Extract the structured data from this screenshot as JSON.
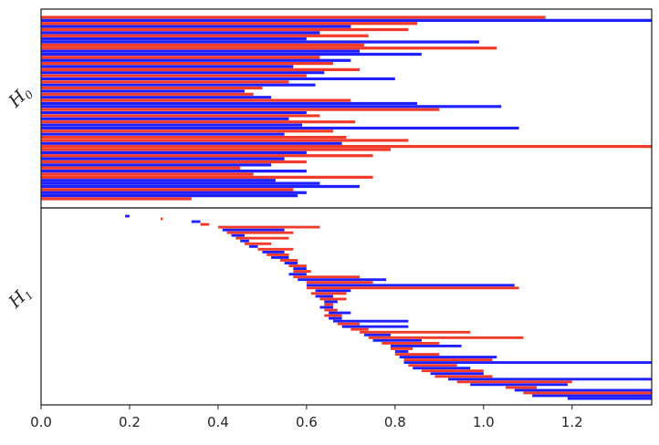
{
  "chart_data": {
    "type": "barcode",
    "xlim": [
      0.0,
      1.38
    ],
    "x_ticks": [
      0.0,
      0.2,
      0.4,
      0.6,
      0.8,
      1.0,
      1.2
    ],
    "x_tick_labels": [
      "0.0",
      "0.2",
      "0.4",
      "0.6",
      "0.8",
      "1.0",
      "1.2"
    ],
    "grid": false,
    "legend": "none",
    "colors": {
      "series_a": "#1f1fff",
      "series_b": "#f03a2a"
    },
    "panels": [
      {
        "label": "H",
        "label_sub": "0",
        "bars": [
          {
            "start": 0.0,
            "end": 1.14,
            "series": "series_b"
          },
          {
            "start": 0.0,
            "end": 1.38,
            "series": "series_a"
          },
          {
            "start": 0.0,
            "end": 0.85,
            "series": "series_b"
          },
          {
            "start": 0.0,
            "end": 0.7,
            "series": "series_a"
          },
          {
            "start": 0.0,
            "end": 0.83,
            "series": "series_b"
          },
          {
            "start": 0.0,
            "end": 0.63,
            "series": "series_a"
          },
          {
            "start": 0.0,
            "end": 0.74,
            "series": "series_b"
          },
          {
            "start": 0.0,
            "end": 0.6,
            "series": "series_a"
          },
          {
            "start": 0.0,
            "end": 0.99,
            "series": "series_a"
          },
          {
            "start": 0.0,
            "end": 0.73,
            "series": "series_b"
          },
          {
            "start": 0.0,
            "end": 1.03,
            "series": "series_b"
          },
          {
            "start": 0.0,
            "end": 0.72,
            "series": "series_a"
          },
          {
            "start": 0.0,
            "end": 0.86,
            "series": "series_a"
          },
          {
            "start": 0.0,
            "end": 0.63,
            "series": "series_b"
          },
          {
            "start": 0.0,
            "end": 0.7,
            "series": "series_a"
          },
          {
            "start": 0.0,
            "end": 0.66,
            "series": "series_b"
          },
          {
            "start": 0.0,
            "end": 0.57,
            "series": "series_a"
          },
          {
            "start": 0.0,
            "end": 0.72,
            "series": "series_b"
          },
          {
            "start": 0.0,
            "end": 0.64,
            "series": "series_a"
          },
          {
            "start": 0.0,
            "end": 0.6,
            "series": "series_b"
          },
          {
            "start": 0.0,
            "end": 0.8,
            "series": "series_a"
          },
          {
            "start": 0.0,
            "end": 0.56,
            "series": "series_b"
          },
          {
            "start": 0.0,
            "end": 0.62,
            "series": "series_a"
          },
          {
            "start": 0.0,
            "end": 0.5,
            "series": "series_b"
          },
          {
            "start": 0.0,
            "end": 0.46,
            "series": "series_a"
          },
          {
            "start": 0.0,
            "end": 0.48,
            "series": "series_b"
          },
          {
            "start": 0.0,
            "end": 0.52,
            "series": "series_a"
          },
          {
            "start": 0.0,
            "end": 0.7,
            "series": "series_b"
          },
          {
            "start": 0.0,
            "end": 0.85,
            "series": "series_a"
          },
          {
            "start": 0.0,
            "end": 1.04,
            "series": "series_a"
          },
          {
            "start": 0.0,
            "end": 0.9,
            "series": "series_b"
          },
          {
            "start": 0.0,
            "end": 0.6,
            "series": "series_a"
          },
          {
            "start": 0.0,
            "end": 0.63,
            "series": "series_b"
          },
          {
            "start": 0.0,
            "end": 0.56,
            "series": "series_a"
          },
          {
            "start": 0.0,
            "end": 0.71,
            "series": "series_b"
          },
          {
            "start": 0.0,
            "end": 0.59,
            "series": "series_a"
          },
          {
            "start": 0.0,
            "end": 1.08,
            "series": "series_a"
          },
          {
            "start": 0.0,
            "end": 0.66,
            "series": "series_b"
          },
          {
            "start": 0.0,
            "end": 0.55,
            "series": "series_a"
          },
          {
            "start": 0.0,
            "end": 0.69,
            "series": "series_b"
          },
          {
            "start": 0.0,
            "end": 0.83,
            "series": "series_b"
          },
          {
            "start": 0.0,
            "end": 0.68,
            "series": "series_a"
          },
          {
            "start": 0.0,
            "end": 1.38,
            "series": "series_b"
          },
          {
            "start": 0.0,
            "end": 0.79,
            "series": "series_b"
          },
          {
            "start": 0.0,
            "end": 0.6,
            "series": "series_a"
          },
          {
            "start": 0.0,
            "end": 0.75,
            "series": "series_b"
          },
          {
            "start": 0.0,
            "end": 0.55,
            "series": "series_a"
          },
          {
            "start": 0.0,
            "end": 0.6,
            "series": "series_b"
          },
          {
            "start": 0.0,
            "end": 0.52,
            "series": "series_a"
          },
          {
            "start": 0.0,
            "end": 0.45,
            "series": "series_b"
          },
          {
            "start": 0.0,
            "end": 0.6,
            "series": "series_a"
          },
          {
            "start": 0.0,
            "end": 0.48,
            "series": "series_b"
          },
          {
            "start": 0.0,
            "end": 0.75,
            "series": "series_b"
          },
          {
            "start": 0.0,
            "end": 0.53,
            "series": "series_a"
          },
          {
            "start": 0.0,
            "end": 0.63,
            "series": "series_a"
          },
          {
            "start": 0.0,
            "end": 0.72,
            "series": "series_a"
          },
          {
            "start": 0.0,
            "end": 0.57,
            "series": "series_b"
          },
          {
            "start": 0.0,
            "end": 0.6,
            "series": "series_a"
          },
          {
            "start": 0.0,
            "end": 0.58,
            "series": "series_a"
          },
          {
            "start": 0.0,
            "end": 0.34,
            "series": "series_b"
          }
        ]
      },
      {
        "label": "H",
        "label_sub": "1",
        "bars": [
          {
            "start": 0.19,
            "end": 0.2,
            "series": "series_a"
          },
          {
            "start": 0.27,
            "end": 0.275,
            "series": "series_b"
          },
          {
            "start": 0.34,
            "end": 0.36,
            "series": "series_a"
          },
          {
            "start": 0.36,
            "end": 0.38,
            "series": "series_b"
          },
          {
            "start": 0.4,
            "end": 0.63,
            "series": "series_b"
          },
          {
            "start": 0.41,
            "end": 0.55,
            "series": "series_a"
          },
          {
            "start": 0.42,
            "end": 0.57,
            "series": "series_b"
          },
          {
            "start": 0.43,
            "end": 0.46,
            "series": "series_a"
          },
          {
            "start": 0.44,
            "end": 0.56,
            "series": "series_b"
          },
          {
            "start": 0.45,
            "end": 0.47,
            "series": "series_a"
          },
          {
            "start": 0.46,
            "end": 0.52,
            "series": "series_b"
          },
          {
            "start": 0.47,
            "end": 0.49,
            "series": "series_a"
          },
          {
            "start": 0.49,
            "end": 0.57,
            "series": "series_b"
          },
          {
            "start": 0.5,
            "end": 0.55,
            "series": "series_a"
          },
          {
            "start": 0.51,
            "end": 0.56,
            "series": "series_b"
          },
          {
            "start": 0.52,
            "end": 0.56,
            "series": "series_a"
          },
          {
            "start": 0.54,
            "end": 0.58,
            "series": "series_b"
          },
          {
            "start": 0.55,
            "end": 0.58,
            "series": "series_a"
          },
          {
            "start": 0.56,
            "end": 0.6,
            "series": "series_b"
          },
          {
            "start": 0.57,
            "end": 0.6,
            "series": "series_a"
          },
          {
            "start": 0.57,
            "end": 0.61,
            "series": "series_b"
          },
          {
            "start": 0.56,
            "end": 0.6,
            "series": "series_a"
          },
          {
            "start": 0.57,
            "end": 0.72,
            "series": "series_b"
          },
          {
            "start": 0.58,
            "end": 0.78,
            "series": "series_a"
          },
          {
            "start": 0.6,
            "end": 0.75,
            "series": "series_b"
          },
          {
            "start": 0.6,
            "end": 1.07,
            "series": "series_a"
          },
          {
            "start": 0.6,
            "end": 1.08,
            "series": "series_b"
          },
          {
            "start": 0.62,
            "end": 0.7,
            "series": "series_a"
          },
          {
            "start": 0.61,
            "end": 0.69,
            "series": "series_b"
          },
          {
            "start": 0.62,
            "end": 0.66,
            "series": "series_a"
          },
          {
            "start": 0.63,
            "end": 0.69,
            "series": "series_b"
          },
          {
            "start": 0.64,
            "end": 0.67,
            "series": "series_a"
          },
          {
            "start": 0.64,
            "end": 0.66,
            "series": "series_b"
          },
          {
            "start": 0.63,
            "end": 0.66,
            "series": "series_a"
          },
          {
            "start": 0.64,
            "end": 0.67,
            "series": "series_b"
          },
          {
            "start": 0.65,
            "end": 0.7,
            "series": "series_a"
          },
          {
            "start": 0.64,
            "end": 0.68,
            "series": "series_b"
          },
          {
            "start": 0.65,
            "end": 0.68,
            "series": "series_a"
          },
          {
            "start": 0.66,
            "end": 0.83,
            "series": "series_a"
          },
          {
            "start": 0.67,
            "end": 0.72,
            "series": "series_b"
          },
          {
            "start": 0.68,
            "end": 0.83,
            "series": "series_a"
          },
          {
            "start": 0.7,
            "end": 0.74,
            "series": "series_b"
          },
          {
            "start": 0.72,
            "end": 0.97,
            "series": "series_b"
          },
          {
            "start": 0.73,
            "end": 0.79,
            "series": "series_a"
          },
          {
            "start": 0.74,
            "end": 1.09,
            "series": "series_b"
          },
          {
            "start": 0.75,
            "end": 0.86,
            "series": "series_a"
          },
          {
            "start": 0.77,
            "end": 0.9,
            "series": "series_b"
          },
          {
            "start": 0.79,
            "end": 0.95,
            "series": "series_a"
          },
          {
            "start": 0.79,
            "end": 0.84,
            "series": "series_b"
          },
          {
            "start": 0.8,
            "end": 0.83,
            "series": "series_a"
          },
          {
            "start": 0.8,
            "end": 0.9,
            "series": "series_b"
          },
          {
            "start": 0.81,
            "end": 1.03,
            "series": "series_a"
          },
          {
            "start": 0.82,
            "end": 1.02,
            "series": "series_b"
          },
          {
            "start": 0.82,
            "end": 1.38,
            "series": "series_a"
          },
          {
            "start": 0.83,
            "end": 0.94,
            "series": "series_b"
          },
          {
            "start": 0.84,
            "end": 0.97,
            "series": "series_a"
          },
          {
            "start": 0.86,
            "end": 1.0,
            "series": "series_b"
          },
          {
            "start": 0.88,
            "end": 1.0,
            "series": "series_a"
          },
          {
            "start": 0.89,
            "end": 1.02,
            "series": "series_b"
          },
          {
            "start": 0.92,
            "end": 1.38,
            "series": "series_a"
          },
          {
            "start": 0.94,
            "end": 1.2,
            "series": "series_b"
          },
          {
            "start": 0.97,
            "end": 1.19,
            "series": "series_a"
          },
          {
            "start": 1.05,
            "end": 1.12,
            "series": "series_b"
          },
          {
            "start": 1.07,
            "end": 1.38,
            "series": "series_a"
          },
          {
            "start": 1.09,
            "end": 1.38,
            "series": "series_b"
          },
          {
            "start": 1.11,
            "end": 1.38,
            "series": "series_a"
          },
          {
            "start": 1.19,
            "end": 1.38,
            "series": "series_a"
          }
        ]
      }
    ]
  }
}
